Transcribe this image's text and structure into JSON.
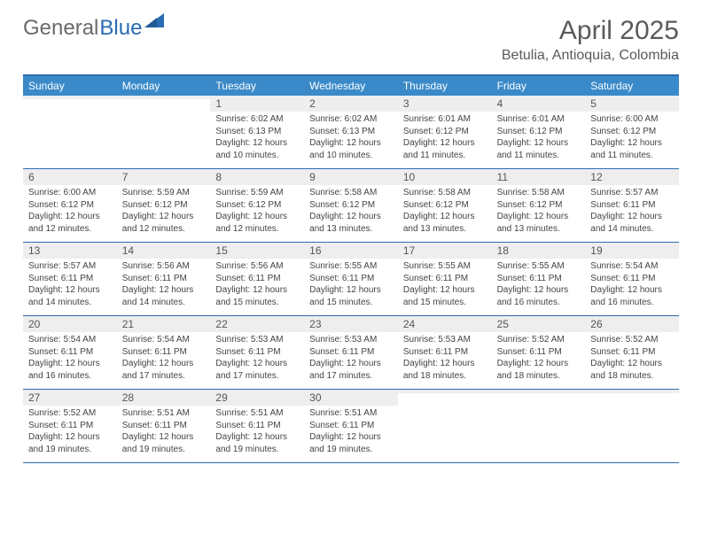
{
  "brand": {
    "part1": "General",
    "part2": "Blue"
  },
  "title": "April 2025",
  "location": "Betulia, Antioquia, Colombia",
  "colors": {
    "header_bg": "#3a8ac9",
    "border": "#2a6bb2",
    "daynum_bg": "#eeeeee",
    "text": "#444444"
  },
  "typography": {
    "title_fontsize": 30,
    "location_fontsize": 16,
    "header_fontsize": 12,
    "body_fontsize": 10
  },
  "day_names": [
    "Sunday",
    "Monday",
    "Tuesday",
    "Wednesday",
    "Thursday",
    "Friday",
    "Saturday"
  ],
  "weeks": [
    [
      {
        "num": "",
        "sunrise": "",
        "sunset": "",
        "daylight1": "",
        "daylight2": ""
      },
      {
        "num": "",
        "sunrise": "",
        "sunset": "",
        "daylight1": "",
        "daylight2": ""
      },
      {
        "num": "1",
        "sunrise": "Sunrise: 6:02 AM",
        "sunset": "Sunset: 6:13 PM",
        "daylight1": "Daylight: 12 hours",
        "daylight2": "and 10 minutes."
      },
      {
        "num": "2",
        "sunrise": "Sunrise: 6:02 AM",
        "sunset": "Sunset: 6:13 PM",
        "daylight1": "Daylight: 12 hours",
        "daylight2": "and 10 minutes."
      },
      {
        "num": "3",
        "sunrise": "Sunrise: 6:01 AM",
        "sunset": "Sunset: 6:12 PM",
        "daylight1": "Daylight: 12 hours",
        "daylight2": "and 11 minutes."
      },
      {
        "num": "4",
        "sunrise": "Sunrise: 6:01 AM",
        "sunset": "Sunset: 6:12 PM",
        "daylight1": "Daylight: 12 hours",
        "daylight2": "and 11 minutes."
      },
      {
        "num": "5",
        "sunrise": "Sunrise: 6:00 AM",
        "sunset": "Sunset: 6:12 PM",
        "daylight1": "Daylight: 12 hours",
        "daylight2": "and 11 minutes."
      }
    ],
    [
      {
        "num": "6",
        "sunrise": "Sunrise: 6:00 AM",
        "sunset": "Sunset: 6:12 PM",
        "daylight1": "Daylight: 12 hours",
        "daylight2": "and 12 minutes."
      },
      {
        "num": "7",
        "sunrise": "Sunrise: 5:59 AM",
        "sunset": "Sunset: 6:12 PM",
        "daylight1": "Daylight: 12 hours",
        "daylight2": "and 12 minutes."
      },
      {
        "num": "8",
        "sunrise": "Sunrise: 5:59 AM",
        "sunset": "Sunset: 6:12 PM",
        "daylight1": "Daylight: 12 hours",
        "daylight2": "and 12 minutes."
      },
      {
        "num": "9",
        "sunrise": "Sunrise: 5:58 AM",
        "sunset": "Sunset: 6:12 PM",
        "daylight1": "Daylight: 12 hours",
        "daylight2": "and 13 minutes."
      },
      {
        "num": "10",
        "sunrise": "Sunrise: 5:58 AM",
        "sunset": "Sunset: 6:12 PM",
        "daylight1": "Daylight: 12 hours",
        "daylight2": "and 13 minutes."
      },
      {
        "num": "11",
        "sunrise": "Sunrise: 5:58 AM",
        "sunset": "Sunset: 6:12 PM",
        "daylight1": "Daylight: 12 hours",
        "daylight2": "and 13 minutes."
      },
      {
        "num": "12",
        "sunrise": "Sunrise: 5:57 AM",
        "sunset": "Sunset: 6:11 PM",
        "daylight1": "Daylight: 12 hours",
        "daylight2": "and 14 minutes."
      }
    ],
    [
      {
        "num": "13",
        "sunrise": "Sunrise: 5:57 AM",
        "sunset": "Sunset: 6:11 PM",
        "daylight1": "Daylight: 12 hours",
        "daylight2": "and 14 minutes."
      },
      {
        "num": "14",
        "sunrise": "Sunrise: 5:56 AM",
        "sunset": "Sunset: 6:11 PM",
        "daylight1": "Daylight: 12 hours",
        "daylight2": "and 14 minutes."
      },
      {
        "num": "15",
        "sunrise": "Sunrise: 5:56 AM",
        "sunset": "Sunset: 6:11 PM",
        "daylight1": "Daylight: 12 hours",
        "daylight2": "and 15 minutes."
      },
      {
        "num": "16",
        "sunrise": "Sunrise: 5:55 AM",
        "sunset": "Sunset: 6:11 PM",
        "daylight1": "Daylight: 12 hours",
        "daylight2": "and 15 minutes."
      },
      {
        "num": "17",
        "sunrise": "Sunrise: 5:55 AM",
        "sunset": "Sunset: 6:11 PM",
        "daylight1": "Daylight: 12 hours",
        "daylight2": "and 15 minutes."
      },
      {
        "num": "18",
        "sunrise": "Sunrise: 5:55 AM",
        "sunset": "Sunset: 6:11 PM",
        "daylight1": "Daylight: 12 hours",
        "daylight2": "and 16 minutes."
      },
      {
        "num": "19",
        "sunrise": "Sunrise: 5:54 AM",
        "sunset": "Sunset: 6:11 PM",
        "daylight1": "Daylight: 12 hours",
        "daylight2": "and 16 minutes."
      }
    ],
    [
      {
        "num": "20",
        "sunrise": "Sunrise: 5:54 AM",
        "sunset": "Sunset: 6:11 PM",
        "daylight1": "Daylight: 12 hours",
        "daylight2": "and 16 minutes."
      },
      {
        "num": "21",
        "sunrise": "Sunrise: 5:54 AM",
        "sunset": "Sunset: 6:11 PM",
        "daylight1": "Daylight: 12 hours",
        "daylight2": "and 17 minutes."
      },
      {
        "num": "22",
        "sunrise": "Sunrise: 5:53 AM",
        "sunset": "Sunset: 6:11 PM",
        "daylight1": "Daylight: 12 hours",
        "daylight2": "and 17 minutes."
      },
      {
        "num": "23",
        "sunrise": "Sunrise: 5:53 AM",
        "sunset": "Sunset: 6:11 PM",
        "daylight1": "Daylight: 12 hours",
        "daylight2": "and 17 minutes."
      },
      {
        "num": "24",
        "sunrise": "Sunrise: 5:53 AM",
        "sunset": "Sunset: 6:11 PM",
        "daylight1": "Daylight: 12 hours",
        "daylight2": "and 18 minutes."
      },
      {
        "num": "25",
        "sunrise": "Sunrise: 5:52 AM",
        "sunset": "Sunset: 6:11 PM",
        "daylight1": "Daylight: 12 hours",
        "daylight2": "and 18 minutes."
      },
      {
        "num": "26",
        "sunrise": "Sunrise: 5:52 AM",
        "sunset": "Sunset: 6:11 PM",
        "daylight1": "Daylight: 12 hours",
        "daylight2": "and 18 minutes."
      }
    ],
    [
      {
        "num": "27",
        "sunrise": "Sunrise: 5:52 AM",
        "sunset": "Sunset: 6:11 PM",
        "daylight1": "Daylight: 12 hours",
        "daylight2": "and 19 minutes."
      },
      {
        "num": "28",
        "sunrise": "Sunrise: 5:51 AM",
        "sunset": "Sunset: 6:11 PM",
        "daylight1": "Daylight: 12 hours",
        "daylight2": "and 19 minutes."
      },
      {
        "num": "29",
        "sunrise": "Sunrise: 5:51 AM",
        "sunset": "Sunset: 6:11 PM",
        "daylight1": "Daylight: 12 hours",
        "daylight2": "and 19 minutes."
      },
      {
        "num": "30",
        "sunrise": "Sunrise: 5:51 AM",
        "sunset": "Sunset: 6:11 PM",
        "daylight1": "Daylight: 12 hours",
        "daylight2": "and 19 minutes."
      },
      {
        "num": "",
        "sunrise": "",
        "sunset": "",
        "daylight1": "",
        "daylight2": ""
      },
      {
        "num": "",
        "sunrise": "",
        "sunset": "",
        "daylight1": "",
        "daylight2": ""
      },
      {
        "num": "",
        "sunrise": "",
        "sunset": "",
        "daylight1": "",
        "daylight2": ""
      }
    ]
  ]
}
